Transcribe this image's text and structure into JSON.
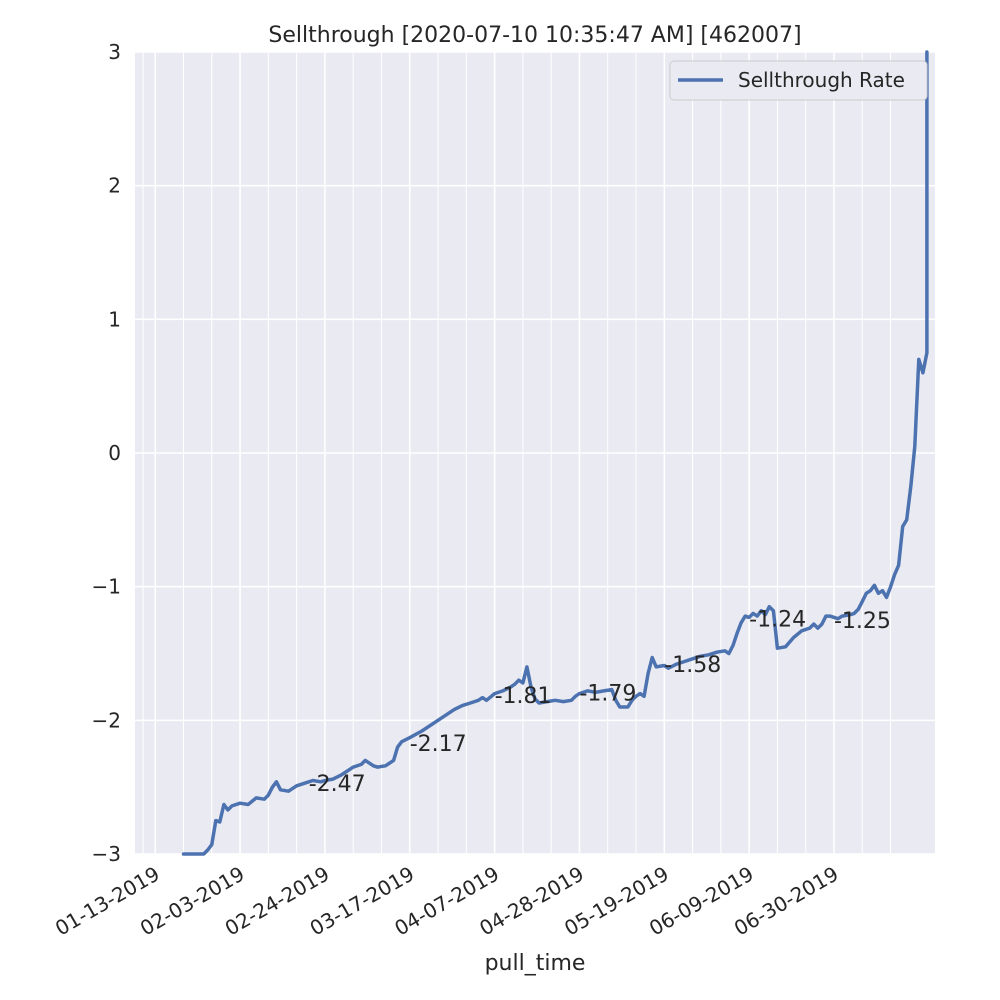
{
  "chart_data": {
    "type": "line",
    "title": "Sellthrough [2020-07-10 10:35:47 AM] [462007]",
    "xlabel": "pull_time",
    "ylabel": "",
    "ylim": [
      -3,
      3
    ],
    "yticks": [
      -3,
      -2,
      -1,
      0,
      1,
      2,
      3
    ],
    "ytick_labels": [
      "−3",
      "−2",
      "−1",
      "0",
      "1",
      "2",
      "3"
    ],
    "xlim": [
      "2019-01-08",
      "2019-07-25"
    ],
    "xtick_labels": [
      "01-13-2019",
      "02-03-2019",
      "02-24-2019",
      "03-17-2019",
      "04-07-2019",
      "04-28-2019",
      "05-19-2019",
      "06-09-2019",
      "06-30-2019"
    ],
    "xtick_dates": [
      "2019-01-13",
      "2019-02-03",
      "2019-02-24",
      "2019-03-17",
      "2019-04-07",
      "2019-04-28",
      "2019-05-19",
      "2019-06-09",
      "2019-06-30"
    ],
    "minor_grid_dates": [
      "2019-01-10",
      "2019-01-20",
      "2019-01-27",
      "2019-02-10",
      "2019-02-17",
      "2019-03-03",
      "2019-03-10",
      "2019-03-24",
      "2019-03-31",
      "2019-04-14",
      "2019-04-21",
      "2019-05-05",
      "2019-05-12",
      "2019-05-26",
      "2019-06-02",
      "2019-06-16",
      "2019-06-23",
      "2019-07-07",
      "2019-07-14"
    ],
    "grid": true,
    "legend": {
      "position": "top-right",
      "entries": [
        "Sellthrough Rate"
      ]
    },
    "series": [
      {
        "name": "Sellthrough Rate",
        "color": "#4c72b0",
        "points": [
          [
            "2019-01-20",
            -3.03
          ],
          [
            "2019-01-21",
            -3.02
          ],
          [
            "2019-01-22",
            -3.03
          ],
          [
            "2019-01-23",
            -3.0
          ],
          [
            "2019-01-24",
            -3.02
          ],
          [
            "2019-01-25",
            -3.0
          ],
          [
            "2019-01-26",
            -2.97
          ],
          [
            "2019-01-27",
            -2.93
          ],
          [
            "2019-01-28",
            -2.75
          ],
          [
            "2019-01-29",
            -2.76
          ],
          [
            "2019-01-30",
            -2.63
          ],
          [
            "2019-01-31",
            -2.67
          ],
          [
            "2019-02-01",
            -2.64
          ],
          [
            "2019-02-03",
            -2.62
          ],
          [
            "2019-02-05",
            -2.63
          ],
          [
            "2019-02-07",
            -2.58
          ],
          [
            "2019-02-09",
            -2.59
          ],
          [
            "2019-02-10",
            -2.56
          ],
          [
            "2019-02-11",
            -2.5
          ],
          [
            "2019-02-12",
            -2.46
          ],
          [
            "2019-02-13",
            -2.52
          ],
          [
            "2019-02-15",
            -2.53
          ],
          [
            "2019-02-17",
            -2.49
          ],
          [
            "2019-02-19",
            -2.47
          ],
          [
            "2019-02-21",
            -2.45
          ],
          [
            "2019-02-23",
            -2.46
          ],
          [
            "2019-02-24",
            -2.45
          ],
          [
            "2019-02-26",
            -2.44
          ],
          [
            "2019-02-28",
            -2.41
          ],
          [
            "2019-03-02",
            -2.37
          ],
          [
            "2019-03-03",
            -2.35
          ],
          [
            "2019-03-05",
            -2.33
          ],
          [
            "2019-03-06",
            -2.3
          ],
          [
            "2019-03-08",
            -2.34
          ],
          [
            "2019-03-09",
            -2.35
          ],
          [
            "2019-03-11",
            -2.34
          ],
          [
            "2019-03-13",
            -2.3
          ],
          [
            "2019-03-14",
            -2.2
          ],
          [
            "2019-03-15",
            -2.16
          ],
          [
            "2019-03-17",
            -2.13
          ],
          [
            "2019-03-20",
            -2.08
          ],
          [
            "2019-03-24",
            -2.0
          ],
          [
            "2019-03-28",
            -1.92
          ],
          [
            "2019-03-30",
            -1.89
          ],
          [
            "2019-04-01",
            -1.87
          ],
          [
            "2019-04-03",
            -1.85
          ],
          [
            "2019-04-04",
            -1.83
          ],
          [
            "2019-04-05",
            -1.85
          ],
          [
            "2019-04-07",
            -1.8
          ],
          [
            "2019-04-09",
            -1.78
          ],
          [
            "2019-04-11",
            -1.75
          ],
          [
            "2019-04-12",
            -1.73
          ],
          [
            "2019-04-13",
            -1.7
          ],
          [
            "2019-04-14",
            -1.72
          ],
          [
            "2019-04-15",
            -1.6
          ],
          [
            "2019-04-16",
            -1.75
          ],
          [
            "2019-04-17",
            -1.84
          ],
          [
            "2019-04-18",
            -1.87
          ],
          [
            "2019-04-20",
            -1.86
          ],
          [
            "2019-04-22",
            -1.85
          ],
          [
            "2019-04-24",
            -1.86
          ],
          [
            "2019-04-26",
            -1.85
          ],
          [
            "2019-04-27",
            -1.82
          ],
          [
            "2019-04-28",
            -1.8
          ],
          [
            "2019-04-30",
            -1.78
          ],
          [
            "2019-05-02",
            -1.79
          ],
          [
            "2019-05-04",
            -1.78
          ],
          [
            "2019-05-06",
            -1.77
          ],
          [
            "2019-05-07",
            -1.85
          ],
          [
            "2019-05-08",
            -1.9
          ],
          [
            "2019-05-10",
            -1.9
          ],
          [
            "2019-05-11",
            -1.85
          ],
          [
            "2019-05-12",
            -1.82
          ],
          [
            "2019-05-13",
            -1.8
          ],
          [
            "2019-05-14",
            -1.82
          ],
          [
            "2019-05-15",
            -1.65
          ],
          [
            "2019-05-16",
            -1.53
          ],
          [
            "2019-05-17",
            -1.6
          ],
          [
            "2019-05-19",
            -1.59
          ],
          [
            "2019-05-20",
            -1.61
          ],
          [
            "2019-05-22",
            -1.58
          ],
          [
            "2019-05-24",
            -1.56
          ],
          [
            "2019-05-26",
            -1.54
          ],
          [
            "2019-05-28",
            -1.52
          ],
          [
            "2019-05-30",
            -1.51
          ],
          [
            "2019-06-01",
            -1.49
          ],
          [
            "2019-06-03",
            -1.48
          ],
          [
            "2019-06-04",
            -1.5
          ],
          [
            "2019-06-05",
            -1.44
          ],
          [
            "2019-06-06",
            -1.35
          ],
          [
            "2019-06-07",
            -1.27
          ],
          [
            "2019-06-08",
            -1.22
          ],
          [
            "2019-06-09",
            -1.23
          ],
          [
            "2019-06-10",
            -1.2
          ],
          [
            "2019-06-11",
            -1.22
          ],
          [
            "2019-06-12",
            -1.18
          ],
          [
            "2019-06-13",
            -1.21
          ],
          [
            "2019-06-14",
            -1.15
          ],
          [
            "2019-06-15",
            -1.18
          ],
          [
            "2019-06-16",
            -1.46
          ],
          [
            "2019-06-18",
            -1.45
          ],
          [
            "2019-06-20",
            -1.38
          ],
          [
            "2019-06-22",
            -1.33
          ],
          [
            "2019-06-24",
            -1.31
          ],
          [
            "2019-06-25",
            -1.28
          ],
          [
            "2019-06-26",
            -1.31
          ],
          [
            "2019-06-27",
            -1.28
          ],
          [
            "2019-06-28",
            -1.22
          ],
          [
            "2019-06-29",
            -1.22
          ],
          [
            "2019-07-01",
            -1.24
          ],
          [
            "2019-07-02",
            -1.22
          ],
          [
            "2019-07-04",
            -1.21
          ],
          [
            "2019-07-05",
            -1.2
          ],
          [
            "2019-07-06",
            -1.17
          ],
          [
            "2019-07-07",
            -1.11
          ],
          [
            "2019-07-08",
            -1.05
          ],
          [
            "2019-07-09",
            -1.03
          ],
          [
            "2019-07-10",
            -0.99
          ],
          [
            "2019-07-11",
            -1.05
          ],
          [
            "2019-07-12",
            -1.03
          ],
          [
            "2019-07-13",
            -1.08
          ],
          [
            "2019-07-14",
            -1.0
          ],
          [
            "2019-07-15",
            -0.91
          ],
          [
            "2019-07-16",
            -0.84
          ],
          [
            "2019-07-17",
            -0.55
          ],
          [
            "2019-07-18",
            -0.5
          ],
          [
            "2019-07-19",
            -0.25
          ],
          [
            "2019-07-20",
            0.05
          ],
          [
            "2019-07-21",
            0.7
          ],
          [
            "2019-07-22",
            0.6
          ],
          [
            "2019-07-23",
            0.75
          ],
          [
            "2019-07-23",
            3.1
          ]
        ]
      }
    ],
    "annotations": [
      {
        "x": "2019-02-20",
        "y": -2.47,
        "text": "-2.47"
      },
      {
        "x": "2019-03-17",
        "y": -2.17,
        "text": "-2.17"
      },
      {
        "x": "2019-04-07",
        "y": -1.81,
        "text": "-1.81"
      },
      {
        "x": "2019-04-28",
        "y": -1.79,
        "text": "-1.79"
      },
      {
        "x": "2019-05-19",
        "y": -1.58,
        "text": "-1.58"
      },
      {
        "x": "2019-06-09",
        "y": -1.24,
        "text": "-1.24"
      },
      {
        "x": "2019-06-30",
        "y": -1.25,
        "text": "-1.25"
      }
    ]
  }
}
